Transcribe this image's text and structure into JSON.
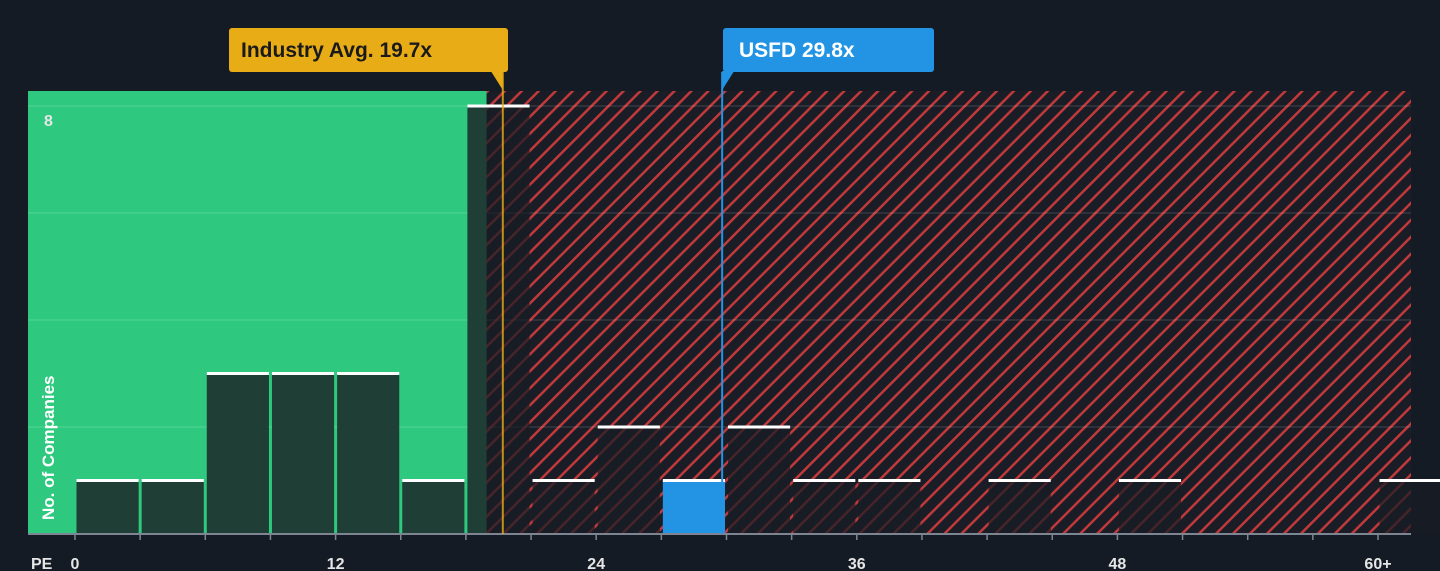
{
  "chart_data": {
    "type": "bar",
    "xlabel": "PE",
    "ylabel": "No. of Companies",
    "x_ticks": [
      "0",
      "12",
      "24",
      "36",
      "48",
      "60+"
    ],
    "y_ticks": [
      "8"
    ],
    "ylim": [
      0,
      8
    ],
    "xlim": [
      -2.5,
      61.5
    ],
    "bin_width": 3,
    "bins": [
      {
        "start": 0,
        "value": 1
      },
      {
        "start": 3,
        "value": 1
      },
      {
        "start": 6,
        "value": 3
      },
      {
        "start": 9,
        "value": 3
      },
      {
        "start": 12,
        "value": 3
      },
      {
        "start": 15,
        "value": 1
      },
      {
        "start": 18,
        "value": 8
      },
      {
        "start": 21,
        "value": 1
      },
      {
        "start": 24,
        "value": 2
      },
      {
        "start": 27,
        "value": 1,
        "highlight": true
      },
      {
        "start": 30,
        "value": 2
      },
      {
        "start": 33,
        "value": 1
      },
      {
        "start": 36,
        "value": 1
      },
      {
        "start": 42,
        "value": 1
      },
      {
        "start": 48,
        "value": 1
      },
      {
        "start": 60,
        "value": 1
      }
    ],
    "industry_avg": {
      "label": "Industry Avg. 19.7x",
      "value": 19.7
    },
    "company": {
      "label": "USFD 29.8x",
      "value": 29.8
    },
    "fair_region_end": 19,
    "grid": true,
    "colors": {
      "background": "#151b24",
      "fair_zone": "#2ec97e",
      "expensive_stripe": "#c0393b",
      "bar_fill": "#1f3e35",
      "bar_dark": "#1c2028",
      "bar_top": "#ffffff",
      "highlight_bar": "#2394e4",
      "industry_callout": "#e8ac17",
      "company_callout": "#2394e4"
    }
  }
}
